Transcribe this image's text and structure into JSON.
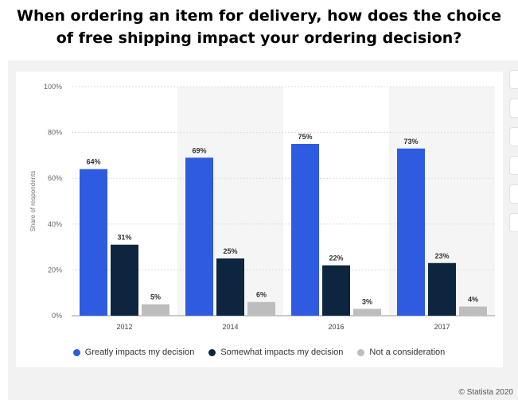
{
  "page": {
    "title_line1": "When ordering an item for delivery, how does the choice",
    "title_line2": "of free shipping impact your ordering decision?",
    "credit": "© Statista 2020"
  },
  "chart_data": {
    "type": "bar",
    "categories": [
      "2012",
      "2014",
      "2016",
      "2017"
    ],
    "series": [
      {
        "name": "Greatly impacts my decision",
        "color": "#2e5bdf",
        "values": [
          64,
          69,
          75,
          73
        ]
      },
      {
        "name": "Somewhat impacts my decision",
        "color": "#0e2540",
        "values": [
          31,
          25,
          22,
          23
        ]
      },
      {
        "name": "Not a consideration",
        "color": "#bdbdbd",
        "values": [
          5,
          6,
          3,
          4
        ]
      }
    ],
    "ylabel": "Share of respondents",
    "ylim": [
      0,
      100
    ],
    "yticks": [
      0,
      20,
      40,
      60,
      80,
      100
    ],
    "ytick_labels": [
      "0%",
      "20%",
      "40%",
      "60%",
      "80%",
      "100%"
    ],
    "value_suffix": "%",
    "grid": true,
    "legend_position": "bottom"
  }
}
